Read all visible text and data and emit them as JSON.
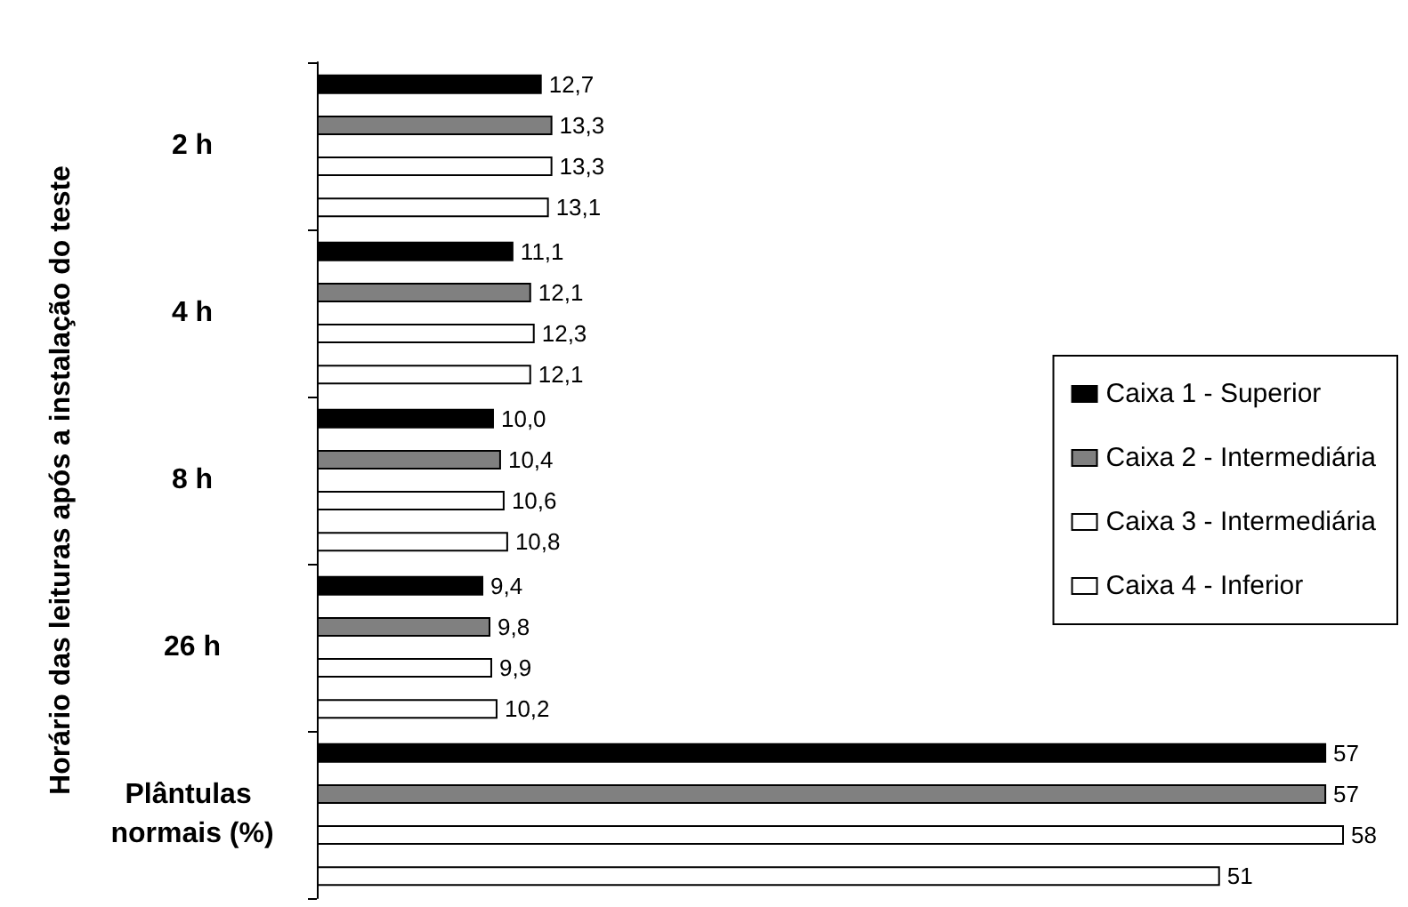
{
  "chart_data": {
    "type": "bar",
    "orientation": "horizontal",
    "ylabel": "Horário das leituras após a instalação do teste",
    "categories": [
      "2 h",
      "4 h",
      "8 h",
      "26 h",
      "Plântulas normais (%)"
    ],
    "legend": "right",
    "series": [
      {
        "name": "Caixa 1 - Superior",
        "color": "#000000",
        "values": [
          12.7,
          11.1,
          10.0,
          9.4,
          57
        ],
        "value_labels": [
          "12,7",
          "11,1",
          "10,0",
          "9,4",
          "57"
        ]
      },
      {
        "name": "Caixa 2 - Intermediária",
        "color": "#808080",
        "values": [
          13.3,
          12.1,
          10.4,
          9.8,
          57
        ],
        "value_labels": [
          "13,3",
          "12,1",
          "10,4",
          "9,8",
          "57"
        ]
      },
      {
        "name": "Caixa 3 - Intermediária",
        "color": "#ffffff",
        "values": [
          13.3,
          12.3,
          10.6,
          9.9,
          58
        ],
        "value_labels": [
          "13,3",
          "12,3",
          "10,6",
          "9,9",
          "58"
        ]
      },
      {
        "name": "Caixa 4 - Inferior",
        "color": "#ffffff",
        "values": [
          13.1,
          12.1,
          10.8,
          10.2,
          51
        ],
        "value_labels": [
          "13,1",
          "12,1",
          "10,8",
          "10,2",
          "51"
        ]
      }
    ]
  }
}
